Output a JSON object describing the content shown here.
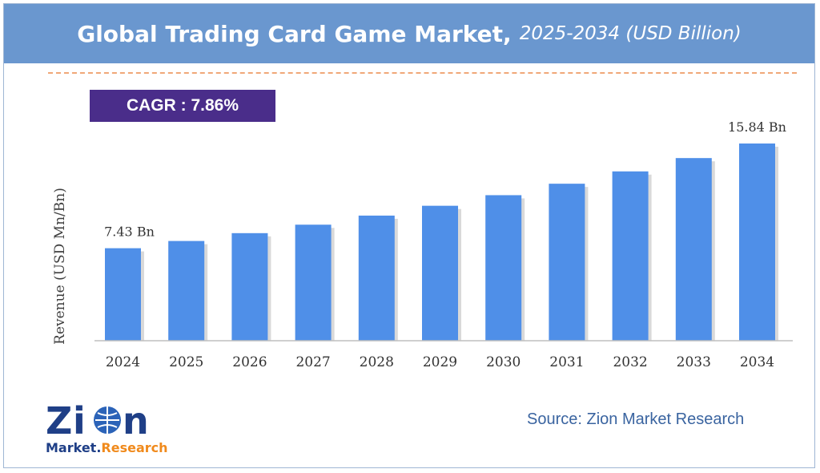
{
  "header": {
    "title": "Global Trading Card Game Market,",
    "subtitle": "2025-2034 (USD Billion)"
  },
  "cagr": "CAGR :  7.86%",
  "source": "Source: Zion Market Research",
  "logo": {
    "word": "Zion",
    "sub": "Market.Research"
  },
  "colors": {
    "bar": "#4f8fe8",
    "header": "#6a97cf",
    "cagr": "#4a2d8a",
    "source": "#3a64a0"
  },
  "chart_data": {
    "type": "bar",
    "title": "Global Trading Card Game Market, 2025-2034 (USD Billion)",
    "ylabel": "Revenue (USD Mn/Bn)",
    "xlabel": "",
    "categories": [
      "2024",
      "2025",
      "2026",
      "2027",
      "2028",
      "2029",
      "2030",
      "2031",
      "2032",
      "2033",
      "2034"
    ],
    "values": [
      7.43,
      8.01,
      8.64,
      9.32,
      10.05,
      10.84,
      11.69,
      12.61,
      13.6,
      14.67,
      15.84
    ],
    "data_labels": {
      "first": "7.43 Bn",
      "last": "15.84 Bn"
    },
    "ylim": [
      0,
      16
    ],
    "grid": false,
    "legend": "none"
  }
}
